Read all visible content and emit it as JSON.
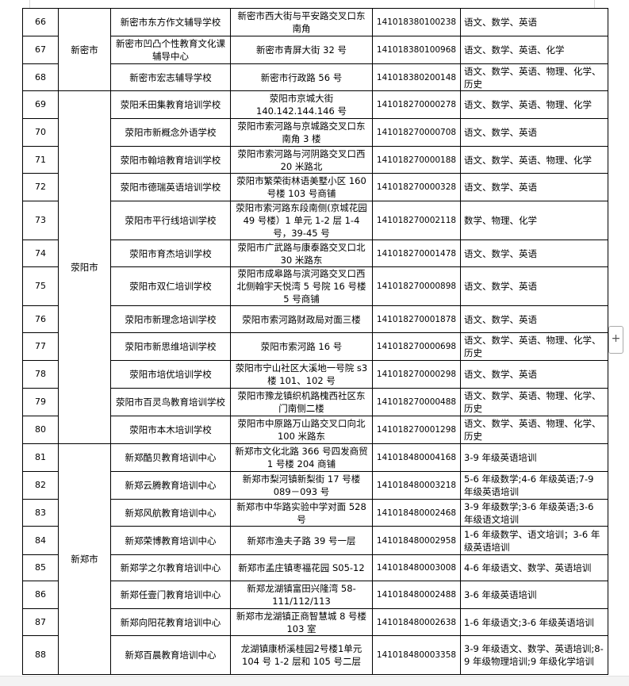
{
  "rows": [
    {
      "no": "66",
      "name": "新密市东方作文辅导学校",
      "address": "新密市西大街与平安路交叉口东南角",
      "code": "141018380100238",
      "subjects": "语文、数学、英语"
    },
    {
      "no": "67",
      "name": "新密市凹凸个性教育文化课辅导中心",
      "address": "新密市青屏大街 32 号",
      "code": "141018380100968",
      "subjects": "语文、数学、英语、化学"
    },
    {
      "no": "68",
      "name": "新密市宏志辅导学校",
      "address": "新密市行政路 56 号",
      "code": "141018380200148",
      "subjects": "语文、数学、英语、物理、化学、历史"
    },
    {
      "no": "69",
      "name": "荥阳禾田集教育培训学校",
      "address": "荥阳市京城大街 140.142.144.146 号",
      "code": "141018270000278",
      "subjects": "语文、数学、英语、物理、化学"
    },
    {
      "no": "70",
      "name": "荥阳市新概念外语学校",
      "address": "荥阳市索河路与京城路交叉口东南角 3 楼",
      "code": "141018270000708",
      "subjects": "语文、数学、英语"
    },
    {
      "no": "71",
      "name": "荥阳市翰培教育培训学校",
      "address": "荥阳市索河路与河阴路交叉口西 20 米路北",
      "code": "141018270000188",
      "subjects": "语文、数学、英语、物理、化学"
    },
    {
      "no": "72",
      "name": "荥阳市德瑞英语培训学校",
      "address": "荥阳市繁荣街林语美墅小区 160 号楼 103 号商铺",
      "code": "141018270000328",
      "subjects": "语文、数学、英语"
    },
    {
      "no": "73",
      "name": "荥阳市平行线培训学校",
      "address": "荥阳市索河路东段南侧(京城花园 49 号楼）1 单元 1-2 层 1-4 号，39-45 号",
      "code": "141018270002118",
      "subjects": "数学、物理、化学"
    },
    {
      "no": "74",
      "name": "荥阳市育杰培训学校",
      "address": "荥阳市广武路与康泰路交叉口北 30 米路东",
      "code": "141018270001478",
      "subjects": "语文、数学、英语"
    },
    {
      "no": "75",
      "name": "荥阳市双仁培训学校",
      "address": "荥阳市成皋路与滨河路交叉口西北侧翰宇天悦湾 5 号院 16 号楼 5 号商铺",
      "code": "141018270000898",
      "subjects": "语文、数学、英语"
    },
    {
      "no": "76",
      "name": "荥阳市新理念培训学校",
      "address": "荥阳市索河路财政局对面三楼",
      "code": "141018270001878",
      "subjects": "语文、数学、英语"
    },
    {
      "no": "77",
      "name": "荥阳市新思维培训学校",
      "address": "荥阳市索河路 16 号",
      "code": "141018270000698",
      "subjects": "语文、数学、英语、物理、化学、历史"
    },
    {
      "no": "78",
      "name": "荥阳市培优培训学校",
      "address": "荥阳市宁山社区大溪地一号院 s3 楼 101、102 号",
      "code": "141018270000298",
      "subjects": "语文、数学、英语"
    },
    {
      "no": "79",
      "name": "荥阳市百灵鸟教育培训学校",
      "address": "荥阳市豫龙镇织机路槐西社区东门南侧二楼",
      "code": "141018270000488",
      "subjects": "语文、数学、英语、物理、化学、历史"
    },
    {
      "no": "80",
      "name": "荥阳市本木培训学校",
      "address": "荥阳市中原路万山路交叉口向北 100 米路东",
      "code": "141018270001298",
      "subjects": "语文、数学、英语、物理、化学、历史"
    },
    {
      "no": "81",
      "name": "新郑酷贝教育培训中心",
      "address": "新郑市文化北路 366 号四发商贸 1 号楼 204 商铺",
      "code": "141018480004168",
      "subjects": "3-9 年级英语培训"
    },
    {
      "no": "82",
      "name": "新郑云腾教育培训中心",
      "address": "新郑市梨河镇新梨街 17 号楼 089－093 号",
      "code": "141018480003218",
      "subjects": "5-6 年级数学;4-6 年级英语;7-9 年级英语培训"
    },
    {
      "no": "83",
      "name": "新郑风航教育培训中心",
      "address": "新郑市中华路实验中学对面 528 号",
      "code": "141018480002468",
      "subjects": "3-9 年级数学;3-6 年级英语;3-6 年级语文培训"
    },
    {
      "no": "84",
      "name": "新郑荣博教育培训中心",
      "address": "新郑市渔夫子路 39 号一层",
      "code": "141018480002958",
      "subjects": "1-6 年级数学、语文培训；3-6 年级英语培训"
    },
    {
      "no": "85",
      "name": "新郑学之尔教育培训中心",
      "address": "新郑市孟庄镇枣福花园 S05-12",
      "code": "141018480003008",
      "subjects": "4-6 年级语文、数学、英语培训"
    },
    {
      "no": "86",
      "name": "新郑任壹门教育培训中心",
      "address": "新郑龙湖镇富田兴隆湾 58-111/112/113",
      "code": "141018480002488",
      "subjects": "3-6 年级英语培训"
    },
    {
      "no": "87",
      "name": "新郑向阳花教育培训中心",
      "address": "新郑市龙湖镇正商智慧城 8 号楼 103 室",
      "code": "141018480002638",
      "subjects": "1-6 年级语文;3-6 年级英语培训"
    },
    {
      "no": "88",
      "name": "新郑百晨教育培训中心",
      "address": "龙湖镇康桥溪桂园2号楼1单元 104 号 1-2 层和 105 号二层",
      "code": "141018480003358",
      "subjects": "3-9 年级语文、数学、英语培训;8-9 年级物理培训;9 年级化学培训"
    }
  ],
  "cities": [
    {
      "label": "新密市",
      "first_row": 0,
      "span": 3
    },
    {
      "label": "荥阳市",
      "first_row": 3,
      "span": 12
    },
    {
      "label": "新郑市",
      "first_row": 15,
      "span": 8
    }
  ],
  "sidebar_button": {
    "label": "+",
    "icon": "plus-icon"
  }
}
